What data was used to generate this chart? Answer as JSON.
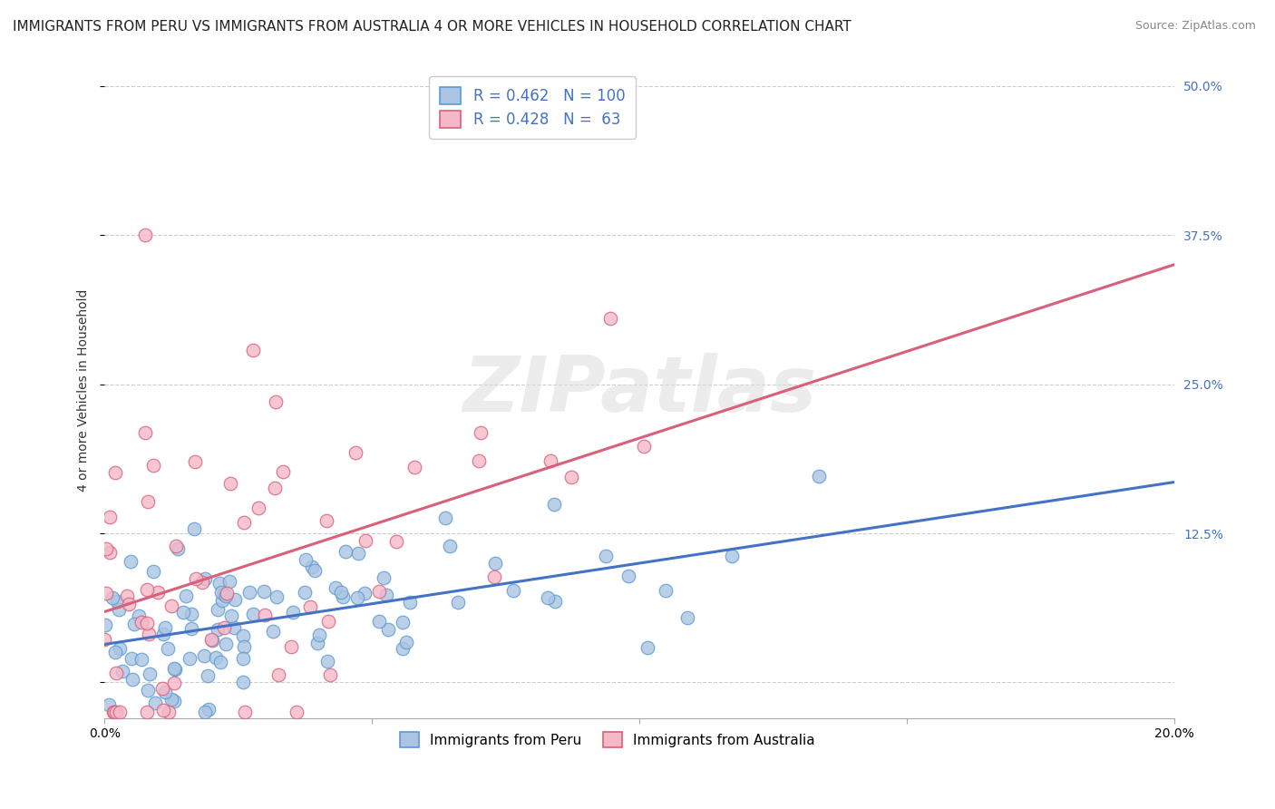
{
  "title": "IMMIGRANTS FROM PERU VS IMMIGRANTS FROM AUSTRALIA 4 OR MORE VEHICLES IN HOUSEHOLD CORRELATION CHART",
  "source": "Source: ZipAtlas.com",
  "ylabel": "4 or more Vehicles in Household",
  "x_min": 0.0,
  "x_max": 0.2,
  "y_min": -0.03,
  "y_max": 0.52,
  "x_ticks": [
    0.0,
    0.05,
    0.1,
    0.15,
    0.2
  ],
  "x_tick_labels": [
    "0.0%",
    "",
    "",
    "",
    "20.0%"
  ],
  "y_ticks": [
    0.0,
    0.125,
    0.25,
    0.375,
    0.5
  ],
  "y_tick_labels_right": [
    "",
    "12.5%",
    "25.0%",
    "37.5%",
    "50.0%"
  ],
  "peru_R": 0.462,
  "peru_N": 100,
  "australia_R": 0.428,
  "australia_N": 63,
  "peru_color": "#aac4e2",
  "peru_edge_color": "#5b9bd5",
  "australia_color": "#f4b8c8",
  "australia_edge_color": "#d9607a",
  "peru_line_color": "#4472c4",
  "australia_line_color": "#d9607a",
  "background_color": "#ffffff",
  "watermark_text": "ZIPatlas",
  "legend_peru_label": "Immigrants from Peru",
  "legend_australia_label": "Immigrants from Australia",
  "title_fontsize": 11,
  "axis_label_fontsize": 10,
  "tick_fontsize": 10,
  "source_fontsize": 9,
  "right_tick_color": "#4472c4"
}
